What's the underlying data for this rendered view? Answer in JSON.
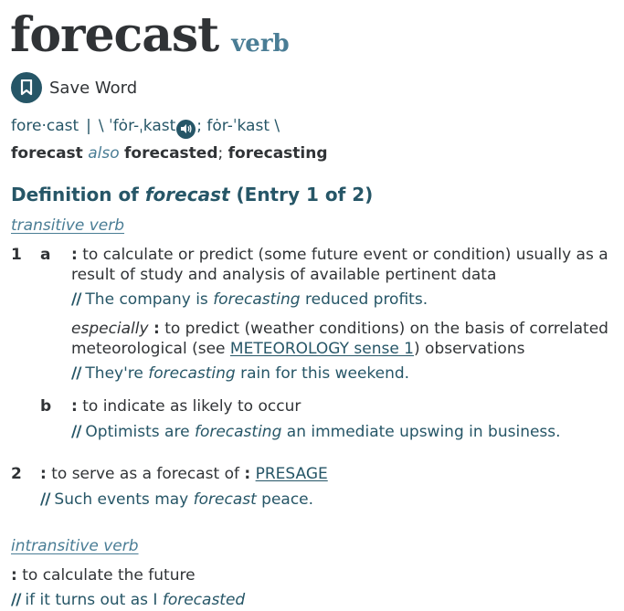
{
  "headword": {
    "word": "forecast",
    "pos": "verb"
  },
  "save_button": {
    "label": "Save Word"
  },
  "pronunciation": {
    "syllables": "fore·cast",
    "divider": "|",
    "open": "\\ ˈfȯr-ˌkast",
    "semicolon": ";",
    "alt": " fȯr-ˈkast \\"
  },
  "forms": {
    "base": "forecast",
    "also": "also",
    "past": "forecasted",
    "sep": ";",
    "ing": "forecasting"
  },
  "definition_heading": {
    "prefix": "Definition of ",
    "word": "forecast",
    "suffix": " (Entry 1 of 2)"
  },
  "transitive": {
    "label": "transitive verb",
    "sense1": {
      "num": "1",
      "a": {
        "letter": "a",
        "text": "to calculate or predict (some future event or condition) usually as a result of study and analysis of available pertinent data",
        "example": {
          "before": "The company is ",
          "word": "forecasting",
          "after": " reduced profits."
        },
        "especially": {
          "label": "especially",
          "text_before": "to predict (weather conditions) on the basis of correlated meteorological (see ",
          "link": "METEOROLOGY sense 1",
          "text_after": ") observations",
          "example": {
            "before": "They're ",
            "word": "forecasting",
            "after": " rain for this weekend."
          }
        }
      },
      "b": {
        "letter": "b",
        "text": "to indicate as likely to occur",
        "example": {
          "before": "Optimists are ",
          "word": "forecasting",
          "after": " an immediate upswing in business."
        }
      }
    },
    "sense2": {
      "num": "2",
      "text": "to serve as a forecast of",
      "link": "PRESAGE",
      "example": {
        "before": "Such events may ",
        "word": "forecast",
        "after": " peace."
      }
    }
  },
  "intransitive": {
    "label": "intransitive verb",
    "text": "to calculate the future",
    "example": {
      "before": "if it turns out as I ",
      "word": "forecasted",
      "after": ""
    }
  }
}
